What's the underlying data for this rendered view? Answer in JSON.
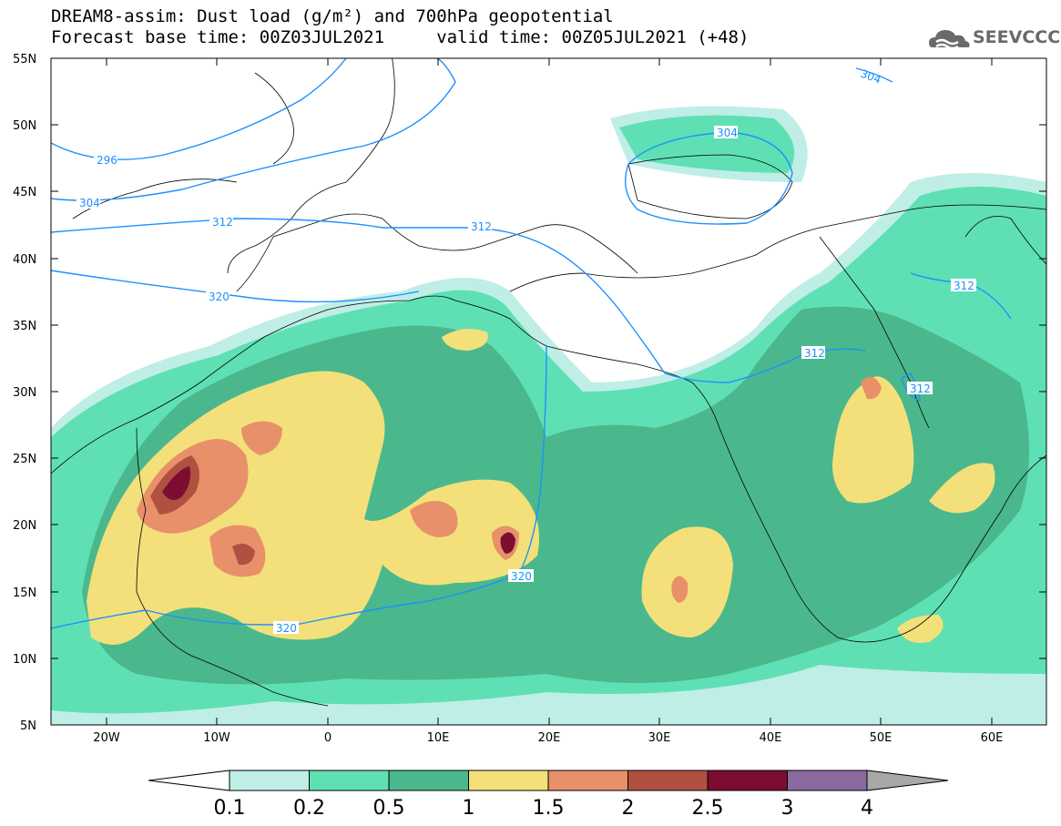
{
  "title": {
    "line1": "DREAM8-assim: Dust load (g/m²) and 700hPa geopotential",
    "line2": "Forecast base time: 00Z03JUL2021     valid time: 00Z05JUL2021 (+48)"
  },
  "logo": {
    "text": "SEEVCCC",
    "icon": "cloud-logo-icon"
  },
  "map": {
    "lat_labels": [
      "55N",
      "50N",
      "45N",
      "40N",
      "35N",
      "30N",
      "25N",
      "20N",
      "15N",
      "10N",
      "5N"
    ],
    "lon_labels": [
      "20W",
      "10W",
      "0",
      "10E",
      "20E",
      "30E",
      "40E",
      "50E",
      "60E"
    ],
    "extent": {
      "lon_min": -25,
      "lon_max": 65,
      "lat_min": 5,
      "lat_max": 55
    },
    "contour_labels": [
      "296",
      "304",
      "312",
      "320",
      "304",
      "312",
      "304",
      "320",
      "312",
      "312",
      "312",
      "320"
    ],
    "contour_color": "#1e90ff"
  },
  "colorbar": {
    "labels": [
      "0.1",
      "0.2",
      "0.5",
      "1",
      "1.5",
      "2",
      "2.5",
      "3",
      "4"
    ],
    "colors": [
      "#ffffff",
      "#bfeee6",
      "#5fe0b4",
      "#4ab88c",
      "#f3e07a",
      "#e8906a",
      "#b05040",
      "#7c0c30",
      "#8a6aa0",
      "#a8a8a8"
    ]
  }
}
